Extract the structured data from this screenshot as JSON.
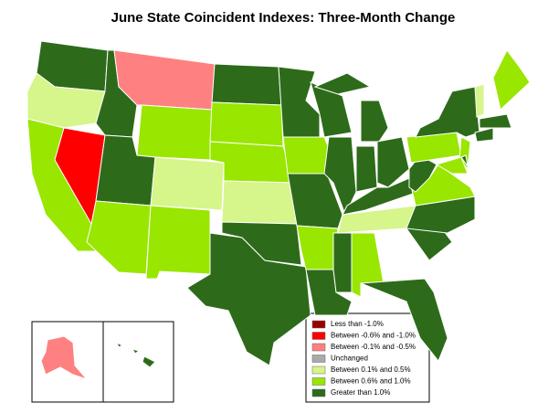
{
  "title": "June State Coincident Indexes: Three-Month Change",
  "legend": [
    {
      "label": "Less than -1.0%",
      "color": "#990000"
    },
    {
      "label": "Between -0.6% and -1.0%",
      "color": "#ff0000"
    },
    {
      "label": "Between -0.1% and -0.5%",
      "color": "#ff8080"
    },
    {
      "label": "Unchanged",
      "color": "#aaaaaa"
    },
    {
      "label": "Between 0.1% and 0.5%",
      "color": "#d6f58a"
    },
    {
      "label": "Between 0.6% and 1.0%",
      "color": "#99e600"
    },
    {
      "label": "Greater than 1.0%",
      "color": "#2d6b1a"
    }
  ],
  "regions": [
    6,
    4,
    5,
    1,
    6,
    2,
    5,
    6,
    5,
    4,
    5,
    6,
    6,
    5,
    5,
    4,
    6,
    6,
    5,
    6,
    5,
    6,
    6,
    6,
    6,
    6,
    6,
    6,
    6,
    4,
    6,
    5,
    6,
    6,
    6,
    5,
    6,
    5,
    6,
    5,
    5,
    6,
    6,
    4,
    6,
    5,
    2,
    6,
    6,
    6
  ]
}
